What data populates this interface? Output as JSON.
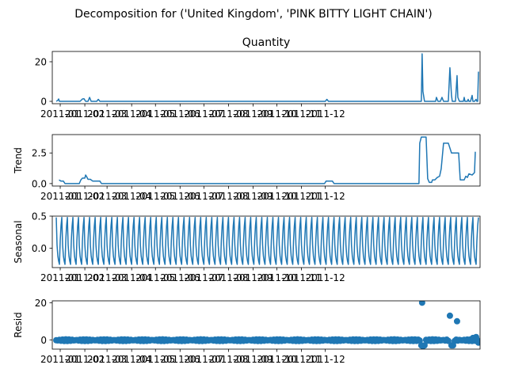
{
  "chart_data": {
    "type": "line",
    "suptitle": "Decomposition for ('United Kingdom', 'PINK BITTY LIGHT CHAIN')",
    "x_tick_labels": [
      "2011-01",
      "2011-02",
      "2011-03",
      "2011-04",
      "2011-05",
      "2011-06",
      "2011-07",
      "2011-08",
      "2011-09",
      "2011-10",
      "2011-11",
      "2011-12"
    ],
    "panels": [
      {
        "id": "observed",
        "title": "Quantity",
        "ylabel": "",
        "kind": "line",
        "yticks": [
          0,
          20
        ],
        "ylim": [
          -1.2,
          25.2
        ],
        "color": "#1f77b4",
        "points": [
          [
            0,
            0
          ],
          [
            2,
            0.5
          ],
          [
            3,
            1.2
          ],
          [
            4,
            0
          ],
          [
            30,
            0
          ],
          [
            33,
            1.2
          ],
          [
            35,
            1.3
          ],
          [
            37,
            0
          ],
          [
            40,
            0
          ],
          [
            42,
            2
          ],
          [
            44,
            0
          ],
          [
            51,
            0
          ],
          [
            53,
            1
          ],
          [
            55,
            0
          ],
          [
            339,
            0
          ],
          [
            341,
            1
          ],
          [
            343,
            0
          ],
          [
            460,
            0
          ],
          [
            461,
            24
          ],
          [
            462,
            5
          ],
          [
            464,
            0
          ],
          [
            478,
            0
          ],
          [
            479,
            2
          ],
          [
            481,
            0
          ],
          [
            484,
            0
          ],
          [
            486,
            2
          ],
          [
            488,
            0
          ],
          [
            494,
            0
          ],
          [
            496,
            17
          ],
          [
            498,
            3
          ],
          [
            499,
            0
          ],
          [
            503,
            0
          ],
          [
            505,
            13
          ],
          [
            506,
            2
          ],
          [
            508,
            0
          ],
          [
            513,
            0
          ],
          [
            514,
            2
          ],
          [
            515,
            0
          ],
          [
            518,
            0
          ],
          [
            519,
            1
          ],
          [
            520,
            0
          ],
          [
            522,
            0
          ],
          [
            524,
            3
          ],
          [
            525,
            0
          ],
          [
            527,
            0
          ],
          [
            529,
            1
          ],
          [
            530,
            0
          ],
          [
            531,
            0
          ],
          [
            532,
            15
          ]
        ]
      },
      {
        "id": "trend",
        "title": "",
        "ylabel": "Trend",
        "kind": "line",
        "yticks": [
          0.0,
          2.5
        ],
        "yticklabels": [
          "0.0",
          "2.5"
        ],
        "ylim": [
          -0.2,
          4.0
        ],
        "color": "#1f77b4",
        "points": [
          [
            3.5,
            0.3
          ],
          [
            6,
            0.2
          ],
          [
            9,
            0.2
          ],
          [
            11,
            0
          ],
          [
            29,
            0
          ],
          [
            31,
            0.3
          ],
          [
            33,
            0.45
          ],
          [
            36,
            0.45
          ],
          [
            37,
            0.7
          ],
          [
            38,
            0.6
          ],
          [
            40,
            0.35
          ],
          [
            43,
            0.35
          ],
          [
            46,
            0.2
          ],
          [
            55,
            0.2
          ],
          [
            57,
            0
          ],
          [
            338,
            0
          ],
          [
            340,
            0.2
          ],
          [
            348,
            0.2
          ],
          [
            350,
            0
          ],
          [
            457,
            0
          ],
          [
            458,
            3.3
          ],
          [
            460,
            3.8
          ],
          [
            466,
            3.8
          ],
          [
            468,
            0.4
          ],
          [
            470,
            0.1
          ],
          [
            473,
            0.1
          ],
          [
            474,
            0.3
          ],
          [
            477,
            0.3
          ],
          [
            480,
            0.5
          ],
          [
            483,
            0.6
          ],
          [
            485,
            1.2
          ],
          [
            488,
            3.3
          ],
          [
            494,
            3.3
          ],
          [
            498,
            2.5
          ],
          [
            507,
            2.5
          ],
          [
            509,
            0.3
          ],
          [
            514,
            0.3
          ],
          [
            516,
            0.6
          ],
          [
            518,
            0.5
          ],
          [
            520,
            0.8
          ],
          [
            524,
            0.7
          ],
          [
            527,
            0.9
          ],
          [
            528,
            2.6
          ]
        ]
      },
      {
        "id": "seasonal",
        "title": "",
        "ylabel": "Seasonal",
        "kind": "seasonal",
        "yticks": [
          0.0,
          0.5
        ],
        "yticklabels": [
          "0.0",
          "0.5"
        ],
        "ylim": [
          -0.3,
          0.5
        ],
        "color": "#1f77b4",
        "period": 7,
        "cycle": [
          0.48,
          0.05,
          -0.12,
          -0.2,
          -0.25,
          0.12,
          0.35
        ]
      },
      {
        "id": "resid",
        "title": "",
        "ylabel": "Resid",
        "kind": "scatter",
        "yticks": [
          0,
          20
        ],
        "ylim": [
          -5,
          21
        ],
        "color": "#1f77b4",
        "outliers": [
          [
            460,
            -3
          ],
          [
            461,
            20
          ],
          [
            462,
            -3.5
          ],
          [
            464,
            -3
          ],
          [
            496,
            13
          ],
          [
            498,
            -3
          ],
          [
            500,
            -3
          ],
          [
            505,
            10
          ],
          [
            525,
            1
          ],
          [
            529,
            1.5
          ],
          [
            532,
            -1.5
          ]
        ]
      }
    ]
  }
}
